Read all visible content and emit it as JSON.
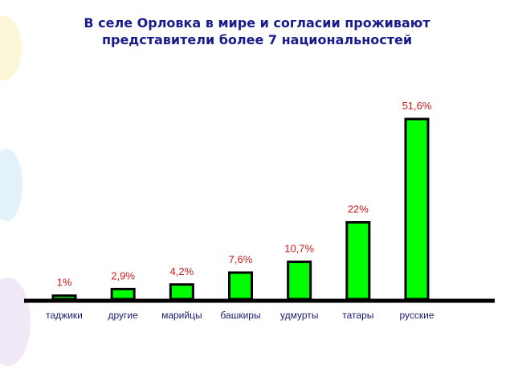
{
  "chart_data": {
    "type": "bar",
    "title": "В селе Орловка в мире и согласии проживают представители  более 7 национальностей",
    "categories": [
      "таджики",
      "другие",
      "марийцы",
      "башкиры",
      "удмурты",
      "татары",
      "русские"
    ],
    "values": [
      1,
      2.9,
      4.2,
      7.6,
      10.7,
      22,
      51.6
    ],
    "value_labels": [
      "1%",
      "2,9%",
      "4,2%",
      "7,6%",
      "10,7%",
      "22%",
      "51,6%"
    ],
    "color": "#00ff00"
  }
}
